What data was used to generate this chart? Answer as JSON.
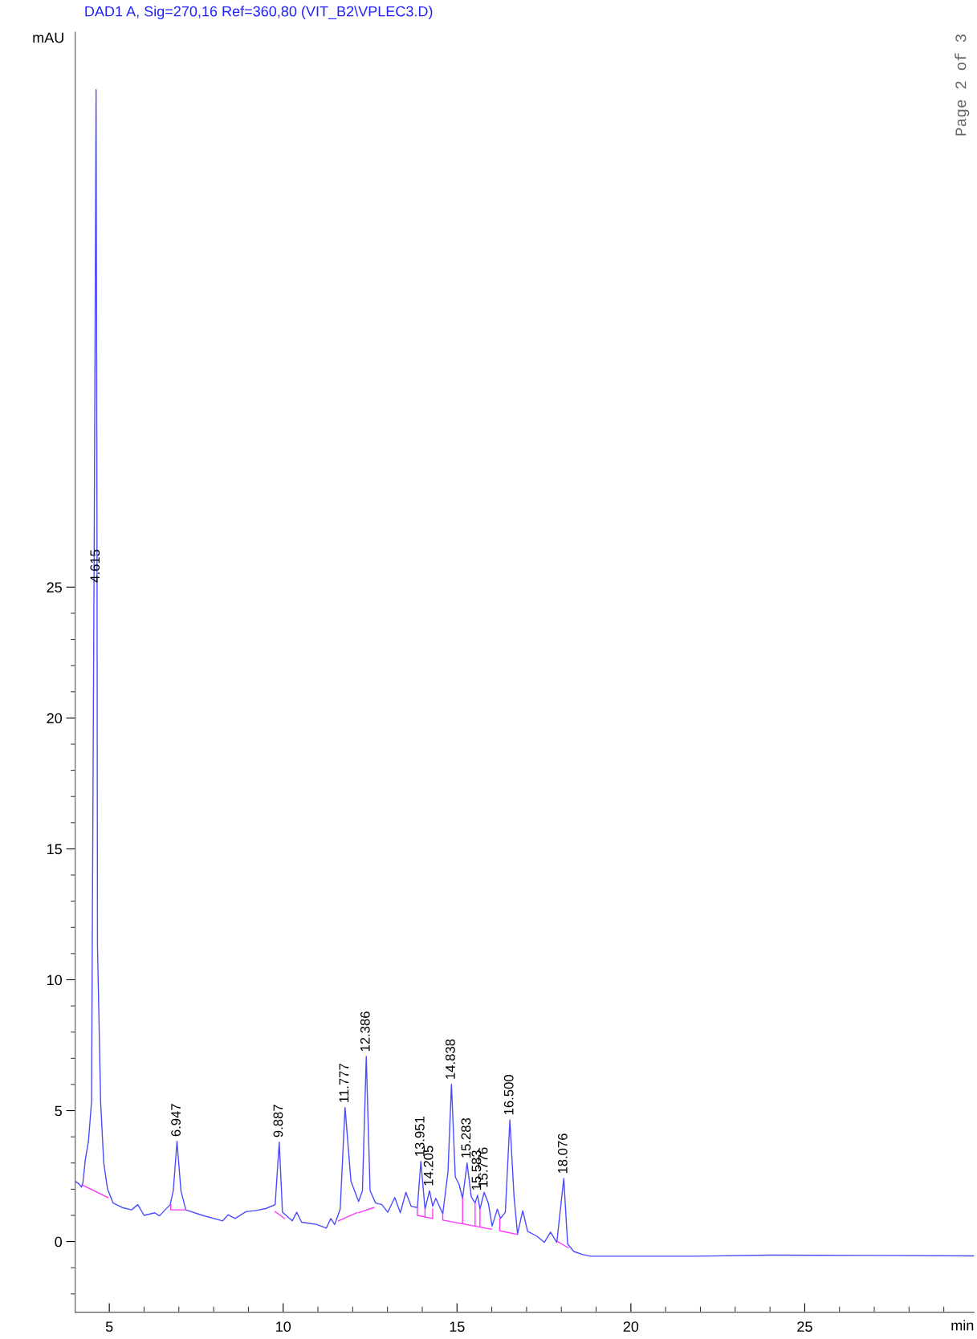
{
  "chart_data": {
    "type": "line",
    "title": "DAD1 A, Sig=270,16 Ref=360,80 (VIT_B2\\VPLEC3.D)",
    "xlabel": "min",
    "ylabel": "mAU",
    "xlim": [
      4.02,
      29.87
    ],
    "ylim": [
      -2.7,
      46.2
    ],
    "xticks": [
      5,
      {
        "value": 6,
        "label": null
      },
      {
        "value": 7,
        "label": null
      },
      {
        "value": 8,
        "label": null
      },
      {
        "value": 9,
        "label": null
      },
      10,
      {
        "value": 11,
        "label": null
      },
      {
        "value": 12,
        "label": null
      },
      {
        "value": 13,
        "label": null
      },
      {
        "value": 14,
        "label": null
      },
      15,
      {
        "value": 16,
        "label": null
      },
      {
        "value": 17,
        "label": null
      },
      {
        "value": 18,
        "label": null
      },
      {
        "value": 19,
        "label": null
      },
      20,
      {
        "value": 21,
        "label": null
      },
      {
        "value": 22,
        "label": null
      },
      {
        "value": 23,
        "label": null
      },
      {
        "value": 24,
        "label": null
      },
      25,
      {
        "value": 26,
        "label": null
      },
      {
        "value": 27,
        "label": null
      },
      {
        "value": 28,
        "label": null
      },
      {
        "value": 29,
        "label": null
      }
    ],
    "yticks": [
      {
        "value": -2,
        "label": null
      },
      {
        "value": -1,
        "label": null
      },
      0,
      {
        "value": 1,
        "label": null
      },
      {
        "value": 2,
        "label": null
      },
      {
        "value": 3,
        "label": null
      },
      {
        "value": 4,
        "label": null
      },
      5,
      {
        "value": 6,
        "label": null
      },
      {
        "value": 7,
        "label": null
      },
      {
        "value": 8,
        "label": null
      },
      {
        "value": 9,
        "label": null
      },
      10,
      {
        "value": 11,
        "label": null
      },
      {
        "value": 12,
        "label": null
      },
      {
        "value": 13,
        "label": null
      },
      {
        "value": 14,
        "label": null
      },
      15,
      {
        "value": 16,
        "label": null
      },
      {
        "value": 17,
        "label": null
      },
      {
        "value": 18,
        "label": null
      },
      {
        "value": 19,
        "label": null
      },
      20,
      {
        "value": 21,
        "label": null
      },
      {
        "value": 22,
        "label": null
      },
      {
        "value": 23,
        "label": null
      },
      {
        "value": 24,
        "label": null
      },
      25
    ],
    "grid": false,
    "legend": false,
    "marker": "none",
    "line_style": "solid",
    "series": [
      {
        "color": "#4a4aff",
        "x": [
          4.02,
          4.13,
          4.2,
          4.24,
          4.31,
          4.4,
          4.49,
          4.51,
          4.57,
          4.62,
          4.645,
          4.66,
          4.75,
          4.84,
          4.95,
          5.11,
          5.37,
          5.64,
          5.82,
          6.0,
          6.31,
          6.44,
          6.75,
          6.84,
          6.947,
          7.06,
          7.2,
          7.68,
          8.26,
          8.42,
          8.62,
          8.93,
          9.19,
          9.5,
          9.77,
          9.887,
          9.98,
          10.26,
          10.39,
          10.53,
          10.97,
          11.24,
          11.37,
          11.48,
          11.64,
          11.78,
          11.95,
          12.17,
          12.28,
          12.39,
          12.5,
          12.66,
          12.84,
          13.01,
          13.21,
          13.37,
          13.53,
          13.68,
          13.86,
          13.96,
          14.08,
          14.21,
          14.3,
          14.39,
          14.59,
          14.74,
          14.84,
          14.95,
          15.06,
          15.16,
          15.29,
          15.41,
          15.52,
          15.59,
          15.66,
          15.78,
          15.9,
          16.01,
          16.16,
          16.25,
          16.39,
          16.52,
          16.64,
          16.74,
          16.89,
          17.03,
          17.29,
          17.51,
          17.69,
          17.87,
          18.07,
          18.18,
          18.36,
          18.62,
          18.85,
          19.6,
          21.82,
          24.04,
          26.87,
          29.87
        ],
        "values": [
          2.3,
          2.2,
          2.08,
          2.24,
          3.12,
          3.83,
          5.36,
          11.3,
          28,
          44.0,
          28,
          11.3,
          5.36,
          3.0,
          2.0,
          1.47,
          1.3,
          1.21,
          1.41,
          1.0,
          1.1,
          0.98,
          1.41,
          1.94,
          3.83,
          1.94,
          1.21,
          1.0,
          0.79,
          1.02,
          0.88,
          1.14,
          1.18,
          1.26,
          1.41,
          3.8,
          1.12,
          0.79,
          1.12,
          0.74,
          0.65,
          0.51,
          0.88,
          0.65,
          1.24,
          5.12,
          2.3,
          1.53,
          1.94,
          7.07,
          1.94,
          1.47,
          1.41,
          1.12,
          1.68,
          1.1,
          1.88,
          1.35,
          1.3,
          3.06,
          1.24,
          1.94,
          1.35,
          1.65,
          1.06,
          2.65,
          6.01,
          2.47,
          2.18,
          1.65,
          3.0,
          1.71,
          1.47,
          1.77,
          1.24,
          1.88,
          1.47,
          0.59,
          1.24,
          0.88,
          1.12,
          4.65,
          1.71,
          0.29,
          1.18,
          0.39,
          0.21,
          -0.03,
          0.36,
          -0.03,
          2.41,
          -0.09,
          -0.38,
          -0.5,
          -0.56,
          -0.56,
          -0.56,
          -0.52,
          -0.53,
          -0.55
        ]
      },
      {
        "color": "#ff33ff",
        "x": [
          4.22,
          4.96
        ],
        "values": [
          2.16,
          1.68
        ]
      },
      {
        "color": "#ff33ff",
        "x": [
          6.77,
          6.77,
          7.2
        ],
        "values": [
          1.41,
          1.21,
          1.21
        ]
      },
      {
        "color": "#ff33ff",
        "x": [
          9.77,
          10.04
        ],
        "values": [
          1.14,
          0.88
        ]
      },
      {
        "color": "#ff33ff",
        "x": [
          11.59,
          12.12
        ],
        "values": [
          0.79,
          1.1
        ]
      },
      {
        "color": "#ff33ff",
        "x": [
          12.17,
          12.61
        ],
        "values": [
          1.1,
          1.3
        ]
      },
      {
        "color": "#ff33ff",
        "x": [
          13.86,
          13.86,
          14.3,
          14.3
        ],
        "values": [
          1.3,
          1.0,
          0.88,
          1.24
        ]
      },
      {
        "color": "#ff33ff",
        "x": [
          14.08,
          14.08
        ],
        "values": [
          0.94,
          1.24
        ]
      },
      {
        "color": "#ff33ff",
        "x": [
          14.59,
          14.59,
          15.99
        ],
        "values": [
          1.06,
          0.82,
          0.47
        ]
      },
      {
        "color": "#ff33ff",
        "x": [
          15.16,
          15.16
        ],
        "values": [
          0.71,
          1.65
        ]
      },
      {
        "color": "#ff33ff",
        "x": [
          15.52,
          15.52
        ],
        "values": [
          0.59,
          1.47
        ]
      },
      {
        "color": "#ff33ff",
        "x": [
          15.66,
          15.66
        ],
        "values": [
          0.57,
          1.24
        ]
      },
      {
        "color": "#ff33ff",
        "x": [
          16.23,
          16.23,
          16.74
        ],
        "values": [
          0.88,
          0.41,
          0.27
        ]
      },
      {
        "color": "#ff33ff",
        "x": [
          17.89,
          18.2
        ],
        "values": [
          0.0,
          -0.24
        ]
      }
    ],
    "annotations": [
      {
        "text": "4.615",
        "x": 4.62,
        "y": 25.0
      },
      {
        "text": "6.947",
        "x": 6.947,
        "y": 3.83
      },
      {
        "text": "9.887",
        "x": 9.887,
        "y": 3.8
      },
      {
        "text": "11.777",
        "x": 11.78,
        "y": 5.12
      },
      {
        "text": "12.386",
        "x": 12.39,
        "y": 7.07
      },
      {
        "text": "13.951",
        "x": 13.96,
        "y": 3.06
      },
      {
        "text": "14.205",
        "x": 14.21,
        "y": 1.94
      },
      {
        "text": "14.838",
        "x": 14.84,
        "y": 6.01
      },
      {
        "text": "15.283",
        "x": 15.29,
        "y": 3.0
      },
      {
        "text": "15.583",
        "x": 15.59,
        "y": 1.77
      },
      {
        "text": "15.776",
        "x": 15.78,
        "y": 1.88
      },
      {
        "text": "16.500",
        "x": 16.52,
        "y": 4.65
      },
      {
        "text": "18.076",
        "x": 18.07,
        "y": 2.41
      },
      "Page 2 of 3"
    ]
  }
}
